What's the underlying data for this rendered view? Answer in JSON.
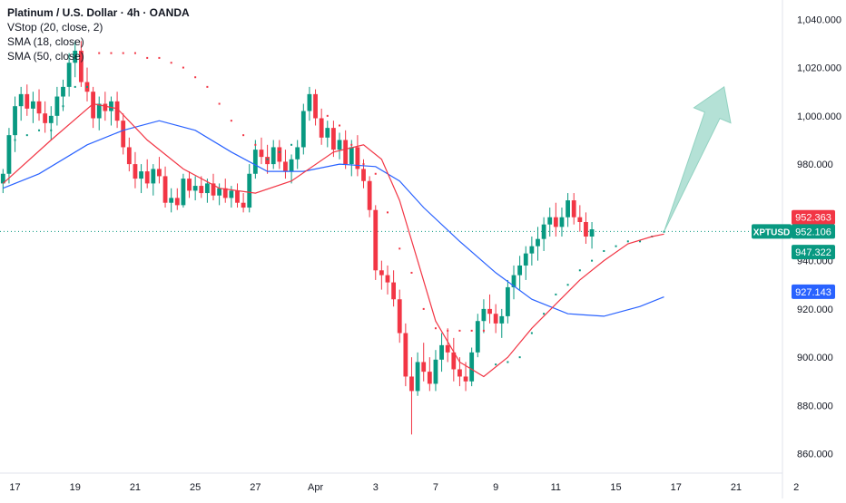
{
  "legend": {
    "title": "Platinum / U.S. Dollar · 4h · OANDA",
    "indicators": [
      "VStop (20, close, 2)",
      "SMA (18, close)",
      "SMA (50, close)"
    ]
  },
  "colors": {
    "up": "#089981",
    "down": "#f23645",
    "sma18": "#f23645",
    "sma50": "#2962ff",
    "vstop_up": "#089981",
    "vstop_down": "#f23645",
    "arrow_fill": "#a8dccf",
    "arrow_stroke": "#7fcbb7",
    "axis_text": "#131722",
    "symbol_badge": "#089981"
  },
  "chart_data": {
    "type": "candlestick",
    "symbol": "XPTUSD",
    "timeframe": "4h",
    "ylim": [
      852,
      1048
    ],
    "y_ticks": [
      "1,040.000",
      "1,020.000",
      "1,000.000",
      "980.000",
      "940.000",
      "920.000",
      "900.000",
      "880.000",
      "860.000"
    ],
    "x_ticks": [
      {
        "label": "17",
        "i": 2
      },
      {
        "label": "19",
        "i": 12
      },
      {
        "label": "21",
        "i": 22
      },
      {
        "label": "25",
        "i": 32
      },
      {
        "label": "27",
        "i": 42
      },
      {
        "label": "Apr",
        "i": 52
      },
      {
        "label": "3",
        "i": 62
      },
      {
        "label": "7",
        "i": 72
      },
      {
        "label": "9",
        "i": 82
      },
      {
        "label": "11",
        "i": 92
      },
      {
        "label": "15",
        "i": 102
      },
      {
        "label": "17",
        "i": 112
      },
      {
        "label": "21",
        "i": 122
      },
      {
        "label": "2",
        "i": 132
      }
    ],
    "num_slots": 134,
    "candles": [
      [
        972,
        978,
        968,
        976
      ],
      [
        976,
        995,
        972,
        992
      ],
      [
        992,
        1008,
        985,
        1004
      ],
      [
        1004,
        1012,
        998,
        1009
      ],
      [
        1009,
        1013,
        1000,
        1003
      ],
      [
        1003,
        1010,
        997,
        1006
      ],
      [
        1006,
        1011,
        998,
        1001
      ],
      [
        1001,
        1006,
        993,
        997
      ],
      [
        997,
        1004,
        990,
        1000
      ],
      [
        1000,
        1012,
        996,
        1008
      ],
      [
        1008,
        1015,
        1002,
        1012
      ],
      [
        1012,
        1026,
        1008,
        1022
      ],
      [
        1022,
        1031,
        1016,
        1027
      ],
      [
        1027,
        1031,
        1012,
        1014
      ],
      [
        1014,
        1020,
        1006,
        1010
      ],
      [
        1010,
        1012,
        995,
        999
      ],
      [
        999,
        1008,
        994,
        1005
      ],
      [
        1005,
        1010,
        998,
        1002
      ],
      [
        1002,
        1008,
        996,
        1006
      ],
      [
        1006,
        1010,
        995,
        998
      ],
      [
        998,
        1001,
        984,
        987
      ],
      [
        987,
        991,
        977,
        980
      ],
      [
        980,
        985,
        970,
        974
      ],
      [
        974,
        980,
        968,
        977
      ],
      [
        977,
        982,
        970,
        972
      ],
      [
        972,
        980,
        967,
        978
      ],
      [
        978,
        983,
        972,
        975
      ],
      [
        975,
        979,
        962,
        964
      ],
      [
        964,
        970,
        960,
        966
      ],
      [
        966,
        970,
        961,
        963
      ],
      [
        963,
        976,
        962,
        974
      ],
      [
        974,
        977,
        966,
        969
      ],
      [
        969,
        975,
        965,
        971
      ],
      [
        971,
        975,
        966,
        968
      ],
      [
        968,
        974,
        964,
        972
      ],
      [
        972,
        976,
        965,
        967
      ],
      [
        967,
        972,
        963,
        970
      ],
      [
        970,
        974,
        964,
        966
      ],
      [
        966,
        971,
        962,
        969
      ],
      [
        969,
        972,
        962,
        964
      ],
      [
        964,
        968,
        960,
        962
      ],
      [
        962,
        980,
        960,
        976
      ],
      [
        976,
        990,
        974,
        986
      ],
      [
        986,
        991,
        980,
        983
      ],
      [
        983,
        988,
        976,
        980
      ],
      [
        980,
        990,
        978,
        987
      ],
      [
        987,
        990,
        978,
        981
      ],
      [
        981,
        986,
        974,
        977
      ],
      [
        977,
        984,
        972,
        982
      ],
      [
        982,
        990,
        978,
        987
      ],
      [
        987,
        1005,
        984,
        1002
      ],
      [
        1002,
        1012,
        998,
        1009
      ],
      [
        1009,
        1011,
        996,
        999
      ],
      [
        999,
        1003,
        988,
        991
      ],
      [
        991,
        998,
        987,
        995
      ],
      [
        995,
        998,
        983,
        986
      ],
      [
        986,
        993,
        982,
        990
      ],
      [
        990,
        994,
        978,
        980
      ],
      [
        980,
        990,
        975,
        987
      ],
      [
        987,
        992,
        975,
        978
      ],
      [
        978,
        982,
        970,
        973
      ],
      [
        973,
        975,
        958,
        961
      ],
      [
        961,
        963,
        932,
        936
      ],
      [
        936,
        940,
        928,
        934
      ],
      [
        934,
        938,
        926,
        931
      ],
      [
        931,
        936,
        921,
        924
      ],
      [
        924,
        928,
        906,
        910
      ],
      [
        910,
        914,
        888,
        892
      ],
      [
        892,
        900,
        868,
        886
      ],
      [
        886,
        902,
        884,
        898
      ],
      [
        898,
        906,
        890,
        894
      ],
      [
        894,
        900,
        886,
        889
      ],
      [
        889,
        903,
        886,
        899
      ],
      [
        899,
        910,
        894,
        905
      ],
      [
        905,
        912,
        898,
        902
      ],
      [
        902,
        908,
        890,
        895
      ],
      [
        895,
        900,
        888,
        892
      ],
      [
        892,
        898,
        886,
        890
      ],
      [
        890,
        904,
        888,
        902
      ],
      [
        902,
        918,
        900,
        915
      ],
      [
        915,
        924,
        910,
        920
      ],
      [
        920,
        926,
        914,
        918
      ],
      [
        918,
        922,
        910,
        914
      ],
      [
        914,
        920,
        908,
        917
      ],
      [
        917,
        932,
        914,
        929
      ],
      [
        929,
        938,
        924,
        934
      ],
      [
        934,
        942,
        928,
        938
      ],
      [
        938,
        946,
        932,
        943
      ],
      [
        943,
        950,
        938,
        946
      ],
      [
        946,
        954,
        940,
        949
      ],
      [
        949,
        958,
        944,
        955
      ],
      [
        955,
        962,
        950,
        958
      ],
      [
        958,
        964,
        950,
        954
      ],
      [
        954,
        962,
        950,
        958
      ],
      [
        958,
        968,
        954,
        965
      ],
      [
        965,
        968,
        955,
        958
      ],
      [
        958,
        963,
        952,
        956
      ],
      [
        956,
        960,
        947,
        950
      ],
      [
        950,
        956,
        945,
        953
      ]
    ],
    "sma18": [
      [
        0,
        972
      ],
      [
        8,
        990
      ],
      [
        15,
        1005
      ],
      [
        19,
        1003
      ],
      [
        24,
        990
      ],
      [
        30,
        978
      ],
      [
        36,
        970
      ],
      [
        42,
        968
      ],
      [
        48,
        973
      ],
      [
        55,
        985
      ],
      [
        60,
        988
      ],
      [
        63,
        982
      ],
      [
        66,
        965
      ],
      [
        69,
        940
      ],
      [
        72,
        915
      ],
      [
        76,
        898
      ],
      [
        80,
        892
      ],
      [
        84,
        900
      ],
      [
        88,
        912
      ],
      [
        92,
        922
      ],
      [
        96,
        932
      ],
      [
        100,
        940
      ],
      [
        104,
        947
      ],
      [
        108,
        950
      ],
      [
        110,
        951
      ]
    ],
    "sma50": [
      [
        0,
        970
      ],
      [
        6,
        976
      ],
      [
        14,
        988
      ],
      [
        20,
        994
      ],
      [
        26,
        998
      ],
      [
        32,
        994
      ],
      [
        38,
        985
      ],
      [
        44,
        977
      ],
      [
        50,
        977
      ],
      [
        56,
        980
      ],
      [
        62,
        979
      ],
      [
        66,
        973
      ],
      [
        70,
        962
      ],
      [
        76,
        948
      ],
      [
        82,
        935
      ],
      [
        88,
        924
      ],
      [
        94,
        918
      ],
      [
        100,
        917
      ],
      [
        106,
        921
      ],
      [
        110,
        925
      ]
    ],
    "vstop": [
      [
        2,
        990,
        "up"
      ],
      [
        4,
        992,
        "up"
      ],
      [
        6,
        994,
        "up"
      ],
      [
        8,
        994,
        "up"
      ],
      [
        10,
        1004,
        "up"
      ],
      [
        12,
        1012,
        "up"
      ],
      [
        14,
        1012,
        "up"
      ],
      [
        16,
        1026,
        "down"
      ],
      [
        18,
        1026,
        "down"
      ],
      [
        20,
        1026,
        "down"
      ],
      [
        22,
        1026,
        "down"
      ],
      [
        24,
        1024,
        "down"
      ],
      [
        26,
        1024,
        "down"
      ],
      [
        28,
        1022,
        "down"
      ],
      [
        30,
        1020,
        "down"
      ],
      [
        32,
        1016,
        "down"
      ],
      [
        34,
        1012,
        "down"
      ],
      [
        36,
        1005,
        "down"
      ],
      [
        38,
        998,
        "down"
      ],
      [
        40,
        992,
        "down"
      ],
      [
        42,
        988,
        "down"
      ],
      [
        44,
        982,
        "up"
      ],
      [
        46,
        985,
        "up"
      ],
      [
        48,
        988,
        "up"
      ],
      [
        50,
        992,
        "up"
      ],
      [
        52,
        1004,
        "down"
      ],
      [
        54,
        1000,
        "down"
      ],
      [
        56,
        996,
        "down"
      ],
      [
        58,
        988,
        "down"
      ],
      [
        60,
        980,
        "down"
      ],
      [
        62,
        976,
        "down"
      ],
      [
        64,
        960,
        "down"
      ],
      [
        66,
        945,
        "down"
      ],
      [
        68,
        935,
        "down"
      ],
      [
        70,
        920,
        "down"
      ],
      [
        72,
        912,
        "down"
      ],
      [
        74,
        911,
        "down"
      ],
      [
        76,
        911,
        "down"
      ],
      [
        78,
        911,
        "down"
      ],
      [
        80,
        911,
        "down"
      ],
      [
        82,
        897,
        "up"
      ],
      [
        84,
        898,
        "up"
      ],
      [
        86,
        900,
        "up"
      ],
      [
        88,
        910,
        "up"
      ],
      [
        90,
        918,
        "up"
      ],
      [
        92,
        926,
        "up"
      ],
      [
        94,
        930,
        "up"
      ],
      [
        96,
        936,
        "up"
      ],
      [
        98,
        940,
        "up"
      ],
      [
        100,
        944,
        "up"
      ],
      [
        102,
        946,
        "up"
      ],
      [
        104,
        948,
        "up"
      ],
      [
        106,
        948,
        "up"
      ],
      [
        108,
        950,
        "up"
      ],
      [
        110,
        952,
        "up"
      ]
    ],
    "price_labels": [
      {
        "text": "952.363",
        "value": 952.363,
        "color": "#f23645"
      },
      {
        "text": "952.106",
        "value": 952.106,
        "color": "#089981"
      },
      {
        "text": "947.322",
        "value": 947.322,
        "color": "#089981"
      },
      {
        "text": "927.143",
        "value": 927.143,
        "color": "#2962ff"
      }
    ],
    "last_price": 952.106,
    "projection_arrow": {
      "from": [
        110,
        952
      ],
      "to": [
        120,
        1012
      ]
    }
  }
}
